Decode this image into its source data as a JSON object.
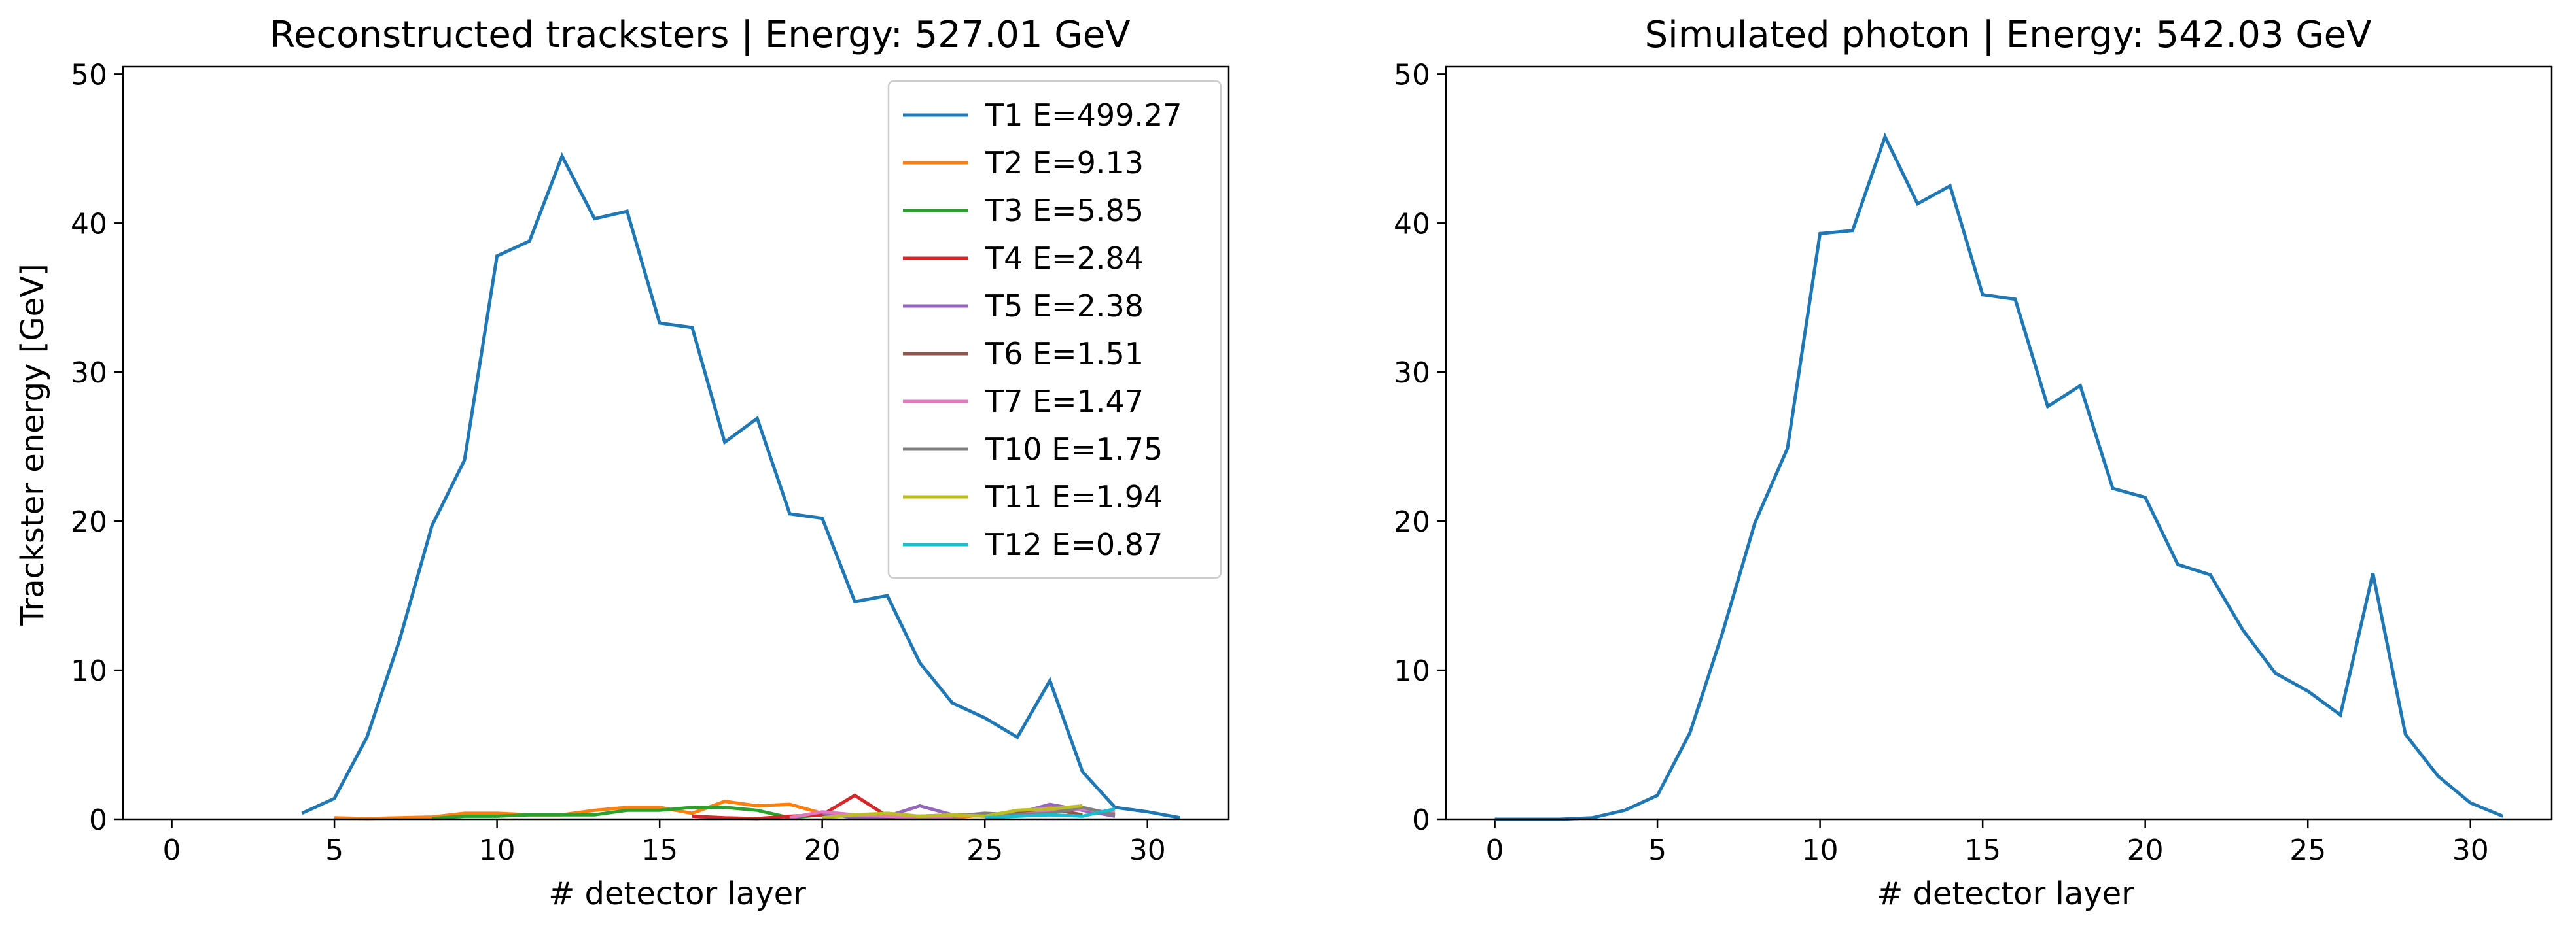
{
  "chart_data": [
    {
      "type": "line",
      "title": "Reconstructed tracksters | Energy: 527.01 GeV",
      "xlabel": "# detector layer",
      "ylabel": "Trackster energy [GeV]",
      "xlim": [
        -1.5,
        32.5
      ],
      "ylim": [
        0,
        50.5
      ],
      "xticks": [
        0,
        5,
        10,
        15,
        20,
        25,
        30
      ],
      "yticks": [
        0,
        10,
        20,
        30,
        40,
        50
      ],
      "legend_position": "top-right",
      "series": [
        {
          "name": "T1 E=499.27",
          "color": "#1f77b4",
          "x": [
            4,
            5,
            6,
            7,
            8,
            9,
            10,
            11,
            12,
            13,
            14,
            15,
            16,
            17,
            18,
            19,
            20,
            21,
            22,
            23,
            24,
            25,
            26,
            27,
            28,
            29,
            30,
            31
          ],
          "y": [
            0.4,
            1.4,
            5.5,
            12.0,
            19.7,
            24.1,
            37.8,
            38.8,
            44.5,
            40.3,
            40.8,
            33.3,
            33.0,
            25.3,
            26.9,
            20.5,
            20.2,
            14.6,
            15.0,
            10.5,
            7.8,
            6.8,
            5.5,
            9.3,
            3.2,
            0.8,
            0.5,
            0.1
          ]
        },
        {
          "name": "T2 E=9.13",
          "color": "#ff7f0e",
          "x": [
            5,
            6,
            7,
            8,
            9,
            10,
            11,
            12,
            13,
            14,
            15,
            16,
            17,
            18,
            19,
            20,
            21,
            22,
            23,
            24,
            25,
            26,
            27,
            28,
            29
          ],
          "y": [
            0.1,
            0.05,
            0.1,
            0.15,
            0.4,
            0.4,
            0.3,
            0.3,
            0.6,
            0.8,
            0.8,
            0.4,
            1.2,
            0.9,
            1.0,
            0.4,
            0.2,
            0.3,
            0.2,
            0.1,
            0.3,
            0.4,
            0.9,
            0.6,
            0.3
          ]
        },
        {
          "name": "T3 E=5.85",
          "color": "#2ca02c",
          "x": [
            8,
            9,
            10,
            11,
            12,
            13,
            14,
            15,
            16,
            17,
            18,
            19,
            20,
            21,
            22
          ],
          "y": [
            0.05,
            0.2,
            0.2,
            0.3,
            0.3,
            0.3,
            0.6,
            0.6,
            0.8,
            0.8,
            0.6,
            0.1,
            0.3,
            0.2,
            0.1
          ]
        },
        {
          "name": "T4 E=2.84",
          "color": "#d62728",
          "x": [
            16,
            17,
            18,
            19,
            20,
            21,
            22,
            23
          ],
          "y": [
            0.2,
            0.1,
            0.05,
            0.2,
            0.3,
            1.6,
            0.2,
            0.1
          ]
        },
        {
          "name": "T5 E=2.38",
          "color": "#9467bd",
          "x": [
            20,
            21,
            22,
            23,
            24,
            25,
            26,
            27,
            28,
            29
          ],
          "y": [
            0.4,
            0.1,
            0.2,
            0.9,
            0.3,
            0.2,
            0.4,
            1.0,
            0.6,
            0.2
          ]
        },
        {
          "name": "T6 E=1.51",
          "color": "#8c564b",
          "x": [
            22,
            23,
            24,
            25,
            26,
            27,
            28
          ],
          "y": [
            0.1,
            0.2,
            0.3,
            0.3,
            0.4,
            0.7,
            0.3
          ]
        },
        {
          "name": "T7 E=1.47",
          "color": "#e377c2",
          "x": [
            19,
            20,
            21,
            22,
            23,
            24,
            25,
            26,
            27,
            28,
            29
          ],
          "y": [
            0.1,
            0.5,
            0.3,
            0.2,
            0.1,
            0.2,
            0.3,
            0.3,
            0.5,
            0.7,
            0.4
          ]
        },
        {
          "name": "T10 E=1.75",
          "color": "#7f7f7f",
          "x": [
            24,
            25,
            26,
            27,
            28,
            29
          ],
          "y": [
            0.2,
            0.4,
            0.3,
            0.4,
            0.8,
            0.3
          ]
        },
        {
          "name": "T11 E=1.94",
          "color": "#bcbd22",
          "x": [
            20,
            21,
            22,
            23,
            24,
            25,
            26,
            27,
            28
          ],
          "y": [
            0.1,
            0.3,
            0.4,
            0.2,
            0.3,
            0.2,
            0.6,
            0.7,
            0.9
          ]
        },
        {
          "name": "T12 E=0.87",
          "color": "#17becf",
          "x": [
            25,
            26,
            27,
            28,
            29
          ],
          "y": [
            0.1,
            0.2,
            0.3,
            0.2,
            0.7
          ]
        }
      ]
    },
    {
      "type": "line",
      "title": "Simulated photon | Energy: 542.03 GeV",
      "xlabel": "# detector layer",
      "ylabel": "",
      "xlim": [
        -1.5,
        32.5
      ],
      "ylim": [
        0,
        50.5
      ],
      "xticks": [
        0,
        5,
        10,
        15,
        20,
        25,
        30
      ],
      "yticks": [
        0,
        10,
        20,
        30,
        40,
        50
      ],
      "series": [
        {
          "color": "#1f77b4",
          "x": [
            0,
            1,
            2,
            3,
            4,
            5,
            6,
            7,
            8,
            9,
            10,
            11,
            12,
            13,
            14,
            15,
            16,
            17,
            18,
            19,
            20,
            21,
            22,
            23,
            24,
            25,
            26,
            27,
            28,
            29,
            30,
            31
          ],
          "y": [
            0,
            0,
            0,
            0.1,
            0.6,
            1.6,
            5.8,
            12.5,
            19.9,
            24.9,
            39.3,
            39.5,
            45.8,
            41.3,
            42.5,
            35.2,
            34.9,
            27.7,
            29.1,
            22.2,
            21.6,
            17.1,
            16.4,
            12.7,
            9.8,
            8.6,
            7.0,
            16.5,
            5.7,
            2.9,
            1.1,
            0.2
          ]
        }
      ]
    }
  ]
}
